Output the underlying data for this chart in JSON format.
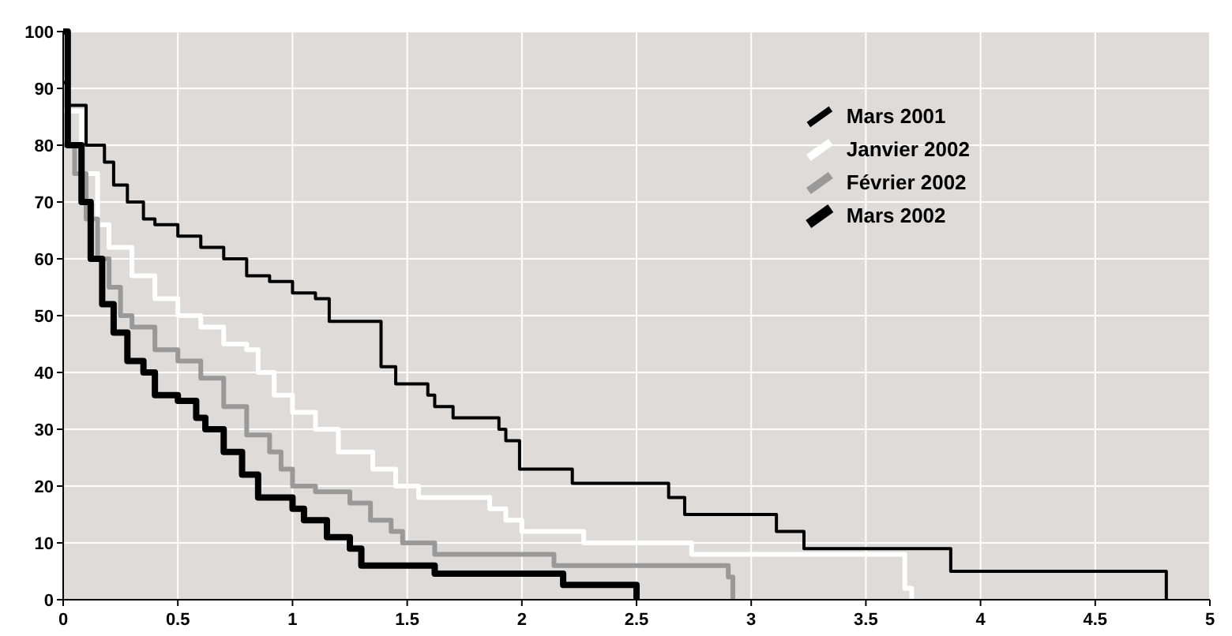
{
  "chart_data": {
    "type": "step",
    "xlim": [
      0,
      5
    ],
    "ylim": [
      0,
      100
    ],
    "xticks": [
      0,
      0.5,
      1,
      1.5,
      2,
      2.5,
      3,
      3.5,
      4,
      4.5,
      5
    ],
    "yticks": [
      0,
      10,
      20,
      30,
      40,
      50,
      60,
      70,
      80,
      90,
      100
    ],
    "grid": true,
    "legend": "top right",
    "series": [
      {
        "name": "Mars 2001",
        "color": "#000000",
        "x": [
          0,
          0.02,
          0.1,
          0.18,
          0.22,
          0.28,
          0.35,
          0.4,
          0.5,
          0.6,
          0.7,
          0.8,
          0.9,
          1.0,
          1.1,
          1.16,
          1.386,
          1.45,
          1.59,
          1.62,
          1.7,
          1.9,
          1.93,
          1.99,
          2.22,
          2.64,
          2.71,
          3.11,
          3.23,
          3.87,
          4.81
        ],
        "values": [
          91,
          87,
          80,
          77,
          73,
          70,
          67,
          66,
          64,
          62,
          60,
          57,
          56,
          54,
          53,
          49,
          41,
          38,
          36,
          34,
          32,
          30,
          28,
          23,
          20.5,
          18,
          15,
          12,
          9,
          5,
          0
        ]
      },
      {
        "name": "Janvier 2002",
        "color": "#ffffff",
        "x": [
          0,
          0.08,
          0.15,
          0.2,
          0.3,
          0.4,
          0.5,
          0.6,
          0.7,
          0.8,
          0.85,
          0.92,
          1.0,
          1.1,
          1.2,
          1.35,
          1.45,
          1.55,
          1.86,
          1.93,
          2.0,
          2.27,
          2.74,
          3.67,
          3.7
        ],
        "values": [
          86,
          75,
          66,
          62,
          57,
          53,
          50,
          48,
          45,
          44,
          40,
          36,
          33,
          30,
          26,
          23,
          20,
          18,
          16,
          14,
          12,
          10,
          8,
          2,
          0
        ]
      },
      {
        "name": "Février 2002",
        "color": "#999999",
        "x": [
          0,
          0.05,
          0.1,
          0.15,
          0.2,
          0.25,
          0.3,
          0.4,
          0.5,
          0.6,
          0.7,
          0.8,
          0.9,
          0.95,
          1.0,
          1.1,
          1.25,
          1.34,
          1.43,
          1.48,
          1.62,
          2.14,
          2.9,
          2.92
        ],
        "values": [
          80,
          75,
          67,
          60,
          55,
          50,
          48,
          44,
          42,
          39,
          34,
          29,
          26,
          23,
          20,
          19,
          17,
          14,
          12,
          10,
          8,
          6,
          4,
          0
        ]
      },
      {
        "name": "Mars 2002",
        "color": "#000000",
        "x": [
          0,
          0.02,
          0.08,
          0.12,
          0.17,
          0.22,
          0.28,
          0.35,
          0.4,
          0.5,
          0.58,
          0.62,
          0.7,
          0.78,
          0.85,
          1.0,
          1.05,
          1.15,
          1.25,
          1.3,
          1.62,
          2.18,
          2.5
        ],
        "values": [
          100,
          80,
          70,
          60,
          52,
          47,
          42,
          40,
          36,
          35,
          32,
          30,
          26,
          22,
          18,
          16,
          14,
          11,
          9,
          6,
          4.6,
          2.6,
          0
        ]
      }
    ],
    "line_style": "solid"
  }
}
